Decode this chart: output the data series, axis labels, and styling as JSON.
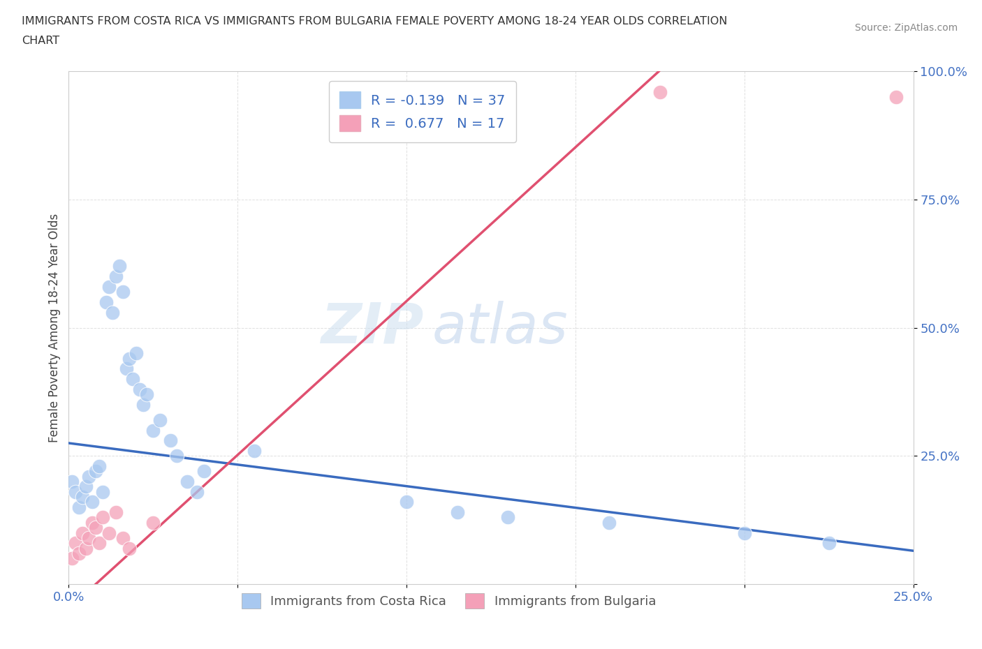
{
  "title_line1": "IMMIGRANTS FROM COSTA RICA VS IMMIGRANTS FROM BULGARIA FEMALE POVERTY AMONG 18-24 YEAR OLDS CORRELATION",
  "title_line2": "CHART",
  "source": "Source: ZipAtlas.com",
  "ylabel": "Female Poverty Among 18-24 Year Olds",
  "xlim": [
    0.0,
    0.25
  ],
  "ylim": [
    0.0,
    1.0
  ],
  "costa_rica_R": -0.139,
  "costa_rica_N": 37,
  "bulgaria_R": 0.677,
  "bulgaria_N": 17,
  "costa_rica_color": "#a8c8f0",
  "bulgaria_color": "#f4a0b8",
  "costa_rica_line_color": "#3a6bbf",
  "bulgaria_line_color": "#e05070",
  "watermark_zip": "ZIP",
  "watermark_atlas": "atlas",
  "background_color": "#ffffff",
  "cr_x": [
    0.001,
    0.002,
    0.003,
    0.004,
    0.005,
    0.006,
    0.007,
    0.008,
    0.009,
    0.01,
    0.011,
    0.012,
    0.013,
    0.014,
    0.015,
    0.016,
    0.017,
    0.018,
    0.019,
    0.02,
    0.021,
    0.022,
    0.023,
    0.025,
    0.027,
    0.03,
    0.032,
    0.035,
    0.038,
    0.04,
    0.055,
    0.1,
    0.115,
    0.13,
    0.16,
    0.2,
    0.225
  ],
  "cr_y": [
    0.2,
    0.18,
    0.15,
    0.17,
    0.19,
    0.21,
    0.16,
    0.22,
    0.23,
    0.18,
    0.55,
    0.58,
    0.53,
    0.6,
    0.62,
    0.57,
    0.42,
    0.44,
    0.4,
    0.45,
    0.38,
    0.35,
    0.37,
    0.3,
    0.32,
    0.28,
    0.25,
    0.2,
    0.18,
    0.22,
    0.26,
    0.16,
    0.14,
    0.13,
    0.12,
    0.1,
    0.08
  ],
  "bg_x": [
    0.001,
    0.002,
    0.003,
    0.004,
    0.005,
    0.006,
    0.007,
    0.008,
    0.009,
    0.01,
    0.012,
    0.014,
    0.016,
    0.018,
    0.025,
    0.175,
    0.245
  ],
  "bg_y": [
    0.05,
    0.08,
    0.06,
    0.1,
    0.07,
    0.09,
    0.12,
    0.11,
    0.08,
    0.13,
    0.1,
    0.14,
    0.09,
    0.07,
    0.12,
    0.96,
    0.95
  ]
}
